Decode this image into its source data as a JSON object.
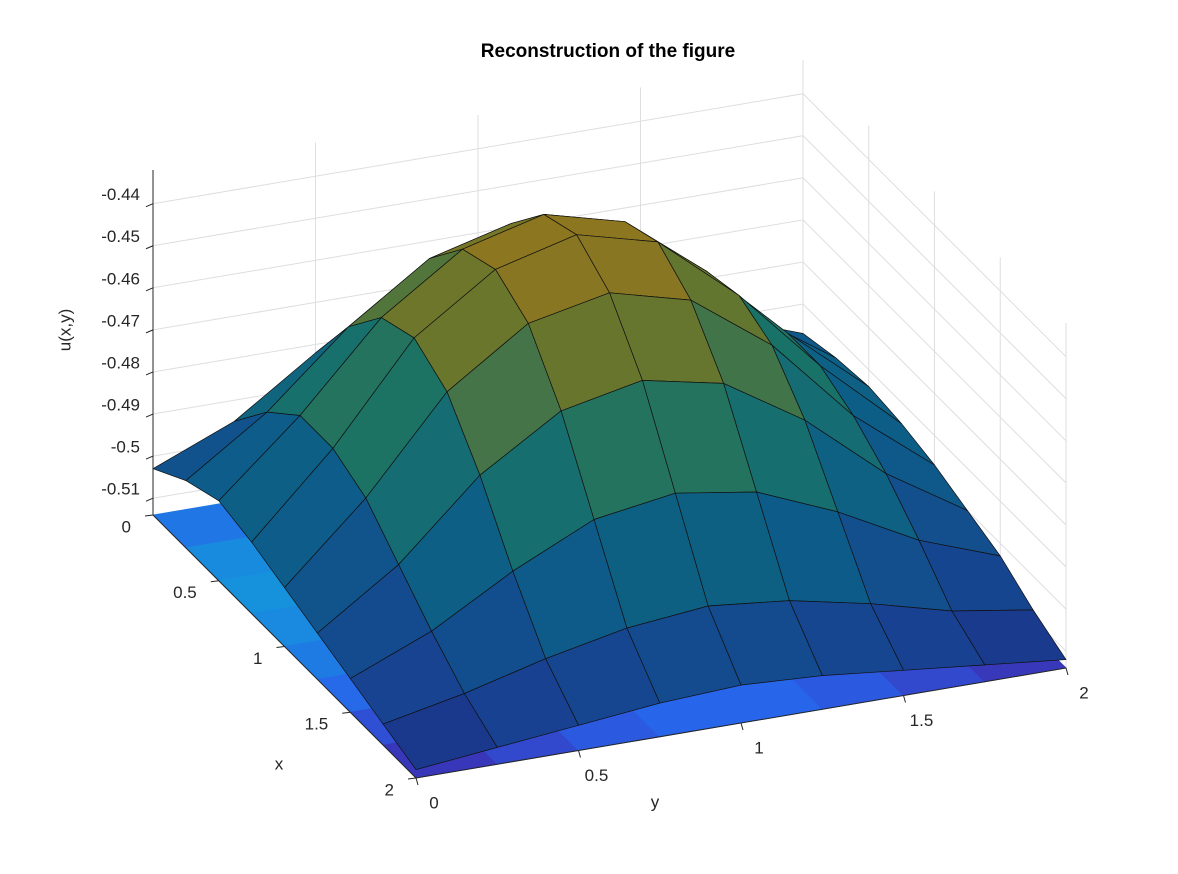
{
  "chart_data": {
    "type": "surface",
    "title": "Reconstruction of the figure",
    "xlabel": "x",
    "ylabel": "y",
    "zlabel": "u(x,y)",
    "x": [
      0,
      0.25,
      0.5,
      0.75,
      1,
      1.25,
      1.5,
      1.75,
      2
    ],
    "y": [
      0,
      0.25,
      0.5,
      0.75,
      1,
      1.25,
      1.5,
      1.75,
      2
    ],
    "z": [
      [
        -0.503,
        -0.495,
        -0.482,
        -0.47,
        -0.468,
        -0.472,
        -0.48,
        -0.49,
        -0.497
      ],
      [
        -0.498,
        -0.485,
        -0.468,
        -0.455,
        -0.45,
        -0.455,
        -0.468,
        -0.482,
        -0.495
      ],
      [
        -0.495,
        -0.478,
        -0.458,
        -0.445,
        -0.44,
        -0.445,
        -0.46,
        -0.478,
        -0.494
      ],
      [
        -0.497,
        -0.478,
        -0.455,
        -0.442,
        -0.437,
        -0.442,
        -0.458,
        -0.478,
        -0.495
      ],
      [
        -0.5,
        -0.482,
        -0.46,
        -0.447,
        -0.443,
        -0.448,
        -0.462,
        -0.482,
        -0.497
      ],
      [
        -0.503,
        -0.49,
        -0.472,
        -0.46,
        -0.456,
        -0.46,
        -0.472,
        -0.488,
        -0.5
      ],
      [
        -0.506,
        -0.498,
        -0.487,
        -0.478,
        -0.475,
        -0.478,
        -0.486,
        -0.496,
        -0.503
      ],
      [
        -0.509,
        -0.505,
        -0.5,
        -0.496,
        -0.494,
        -0.496,
        -0.5,
        -0.505,
        -0.508
      ],
      [
        -0.512,
        -0.51,
        -0.508,
        -0.506,
        -0.505,
        -0.506,
        -0.508,
        -0.51,
        -0.512
      ]
    ],
    "xlim": [
      0,
      2
    ],
    "ylim": [
      0,
      2
    ],
    "zlim": [
      -0.514,
      -0.432
    ],
    "xticks": [
      0,
      0.5,
      1,
      1.5,
      2
    ],
    "yticks": [
      0,
      0.5,
      1,
      1.5,
      2
    ],
    "zticks": [
      -0.51,
      -0.5,
      -0.49,
      -0.48,
      -0.47,
      -0.46,
      -0.45,
      -0.44
    ],
    "colormap": "parula",
    "grid": true
  }
}
